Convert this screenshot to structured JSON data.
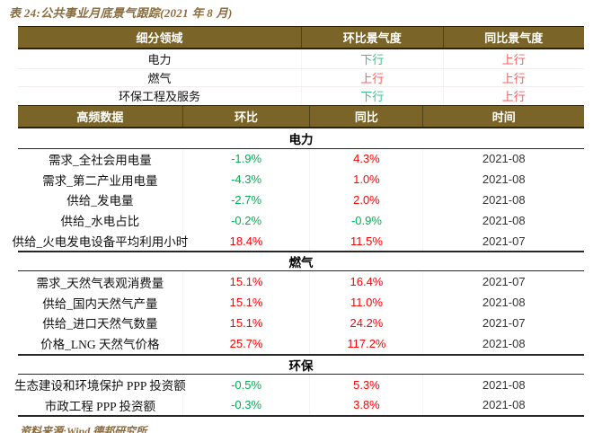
{
  "title": "表 24:公共事业月底景气跟踪(2021 年 8 月)",
  "footer": "资料来源:Wind,德邦研究所",
  "colors": {
    "header_bg": "#7a6428",
    "header_text": "#ffffff",
    "title_brown": "#8b6c3e",
    "green_number": "#00b050",
    "red_number": "#ff0000",
    "green_trend": "#3dbe8c",
    "red_trend": "#ff5b5b"
  },
  "overview_table": {
    "headers": [
      "细分领域",
      "环比景气度",
      "同比景气度"
    ],
    "rows": [
      {
        "label": "电力",
        "mom": "下行",
        "mom_tone": "down",
        "yoy": "上行",
        "yoy_tone": "up"
      },
      {
        "label": "燃气",
        "mom": "上行",
        "mom_tone": "up",
        "yoy": "上行",
        "yoy_tone": "up"
      },
      {
        "label": "环保工程及服务",
        "mom": "下行",
        "mom_tone": "down",
        "yoy": "上行",
        "yoy_tone": "up"
      }
    ]
  },
  "detail_table": {
    "headers": [
      "高频数据",
      "环比",
      "同比",
      "时间"
    ],
    "sections": [
      {
        "name": "电力",
        "rows": [
          {
            "label": "需求_全社会用电量",
            "mom": "-1.9%",
            "mom_tone": "down",
            "yoy": "4.3%",
            "yoy_tone": "up",
            "date": "2021-08"
          },
          {
            "label": "需求_第二产业用电量",
            "mom": "-4.3%",
            "mom_tone": "down",
            "yoy": "1.0%",
            "yoy_tone": "up",
            "date": "2021-08"
          },
          {
            "label": "供给_发电量",
            "mom": "-2.7%",
            "mom_tone": "down",
            "yoy": "2.0%",
            "yoy_tone": "up",
            "date": "2021-08"
          },
          {
            "label": "供给_水电占比",
            "mom": "-0.2%",
            "mom_tone": "down",
            "yoy": "-0.9%",
            "yoy_tone": "down",
            "date": "2021-08"
          },
          {
            "label": "供给_火电发电设备平均利用小时",
            "mom": "18.4%",
            "mom_tone": "up",
            "yoy": "11.5%",
            "yoy_tone": "up",
            "date": "2021-07"
          }
        ]
      },
      {
        "name": "燃气",
        "rows": [
          {
            "label": "需求_天然气表观消费量",
            "mom": "15.1%",
            "mom_tone": "up",
            "yoy": "16.4%",
            "yoy_tone": "up",
            "date": "2021-07"
          },
          {
            "label": "供给_国内天然气产量",
            "mom": "15.1%",
            "mom_tone": "up",
            "yoy": "11.0%",
            "yoy_tone": "up",
            "date": "2021-08"
          },
          {
            "label": "供给_进口天然气数量",
            "mom": "15.1%",
            "mom_tone": "up",
            "yoy": "24.2%",
            "yoy_tone": "up",
            "date": "2021-07"
          },
          {
            "label": "价格_LNG 天然气价格",
            "mom": "25.7%",
            "mom_tone": "up",
            "yoy": "117.2%",
            "yoy_tone": "up",
            "date": "2021-08"
          }
        ]
      },
      {
        "name": "环保",
        "rows": [
          {
            "label": "生态建设和环境保护 PPP 投资额",
            "mom": "-0.5%",
            "mom_tone": "down",
            "yoy": "5.3%",
            "yoy_tone": "up",
            "date": "2021-08"
          },
          {
            "label": "市政工程 PPP 投资额",
            "mom": "-0.3%",
            "mom_tone": "down",
            "yoy": "3.8%",
            "yoy_tone": "up",
            "date": "2021-08"
          }
        ]
      }
    ]
  }
}
